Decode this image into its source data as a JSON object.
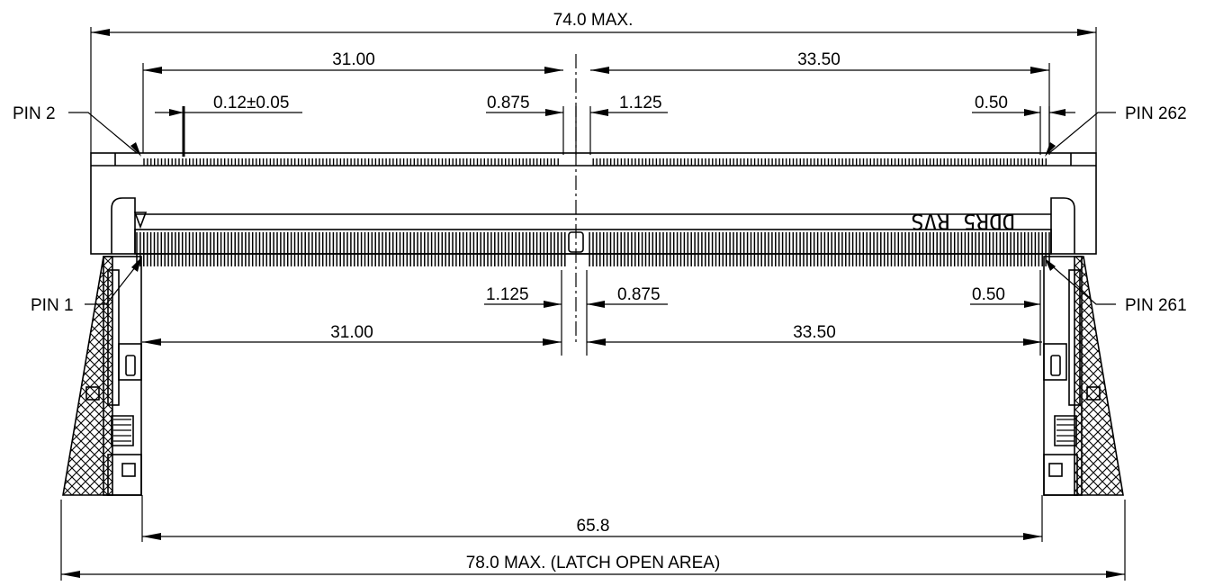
{
  "dimensions": {
    "overall_width": "74.0 MAX.",
    "top_left_span": "31.00",
    "top_right_span": "33.50",
    "pin_width_tol": "0.12±0.05",
    "top_center_left": "0.875",
    "top_center_right": "1.125",
    "top_right_end": "0.50",
    "bottom_center_left": "1.125",
    "bottom_center_right": "0.875",
    "bottom_right_end": "0.50",
    "bottom_left_span": "31.00",
    "bottom_right_span": "33.50",
    "latch_center": "65.8",
    "latch_open_width": "78.0 MAX. (LATCH OPEN AREA)"
  },
  "pins": {
    "pin2": "PIN 2",
    "pin262": "PIN 262",
    "pin1": "PIN 1",
    "pin261": "PIN 261"
  },
  "marking": "DDR5 RVS",
  "style": {
    "line_color": "#000000",
    "background": "#ffffff"
  }
}
